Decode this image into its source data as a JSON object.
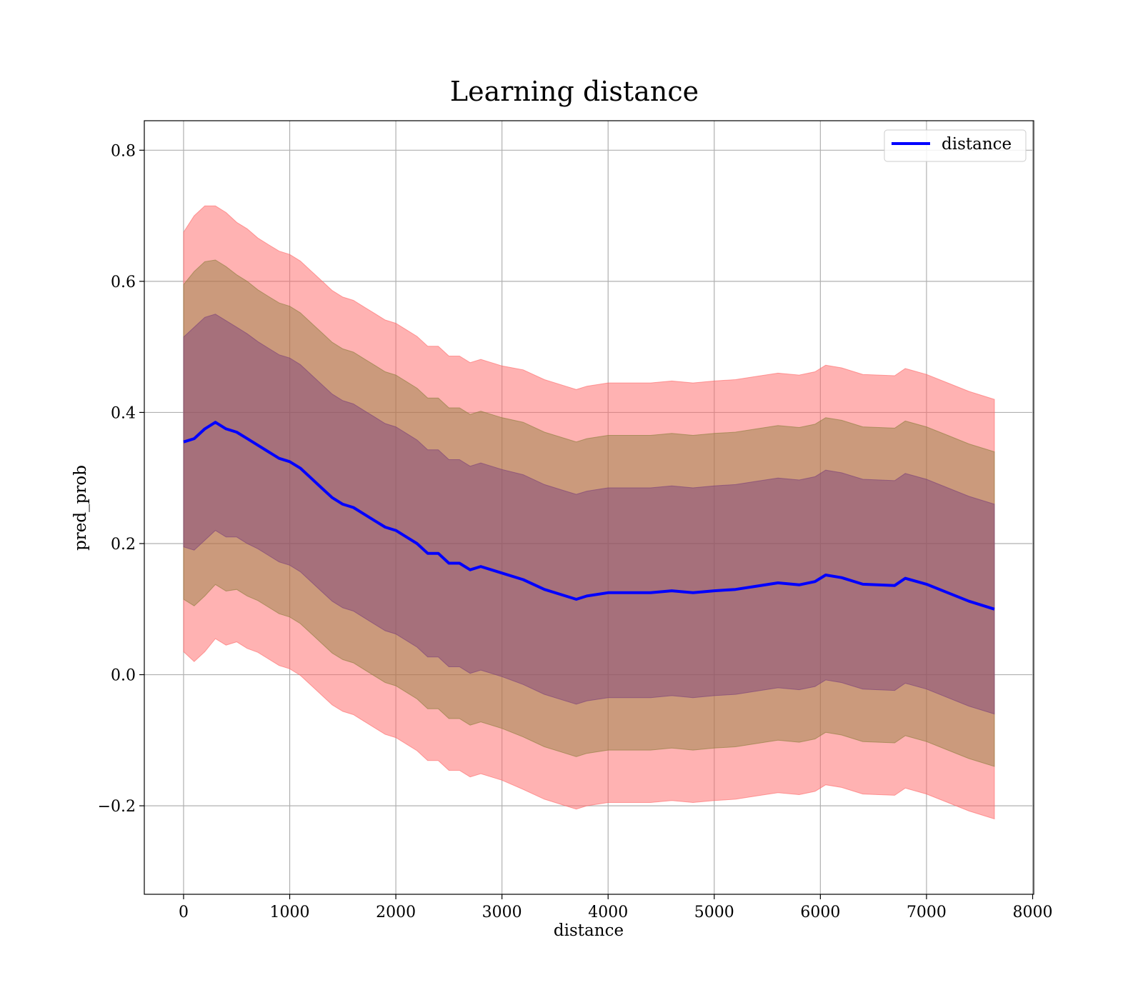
{
  "chart_data": {
    "type": "line",
    "title": "Learning distance",
    "xlabel": "distance",
    "ylabel": "pred_prob",
    "xlim": [
      -370,
      8010
    ],
    "ylim": [
      -0.335,
      0.845
    ],
    "xticks": [
      0,
      1000,
      2000,
      3000,
      4000,
      5000,
      6000,
      7000,
      8000
    ],
    "xtick_labels": [
      "0",
      "1000",
      "2000",
      "3000",
      "4000",
      "5000",
      "6000",
      "7000",
      "8000"
    ],
    "yticks": [
      -0.2,
      0.0,
      0.2,
      0.4,
      0.6,
      0.8
    ],
    "ytick_labels": [
      "−0.2",
      "0.0",
      "0.2",
      "0.4",
      "0.6",
      "0.8"
    ],
    "grid": true,
    "legend_position": "upper right",
    "legend": [
      "distance"
    ],
    "colors": {
      "line": "#0000ff",
      "outer_band": "#ff6666",
      "inner_band": "#8b5a8b",
      "grid": "#b0b0b0"
    },
    "bands": [
      {
        "std_multiplier": 2,
        "color": "#ff6666",
        "opacity": 0.5
      },
      {
        "std_multiplier": 1.5,
        "color": "#8b7d3a",
        "opacity": 0.45
      },
      {
        "std_multiplier": 1,
        "color": "#7a3f7a",
        "opacity": 0.45
      }
    ],
    "series": [
      {
        "name": "distance",
        "x": [
          0,
          100,
          200,
          300,
          400,
          500,
          600,
          700,
          800,
          900,
          1000,
          1100,
          1200,
          1300,
          1400,
          1500,
          1600,
          1700,
          1800,
          1900,
          2000,
          2100,
          2200,
          2300,
          2400,
          2500,
          2600,
          2700,
          2800,
          2900,
          3000,
          3200,
          3400,
          3600,
          3700,
          3800,
          4000,
          4200,
          4400,
          4600,
          4800,
          5000,
          5200,
          5400,
          5600,
          5800,
          5950,
          6050,
          6200,
          6400,
          6700,
          6800,
          7000,
          7200,
          7400,
          7640
        ],
        "y": [
          0.355,
          0.36,
          0.375,
          0.385,
          0.375,
          0.37,
          0.36,
          0.35,
          0.34,
          0.33,
          0.325,
          0.315,
          0.3,
          0.285,
          0.27,
          0.26,
          0.255,
          0.245,
          0.235,
          0.225,
          0.22,
          0.21,
          0.2,
          0.185,
          0.185,
          0.17,
          0.17,
          0.16,
          0.165,
          0.16,
          0.155,
          0.145,
          0.13,
          0.12,
          0.115,
          0.12,
          0.125,
          0.125,
          0.125,
          0.128,
          0.125,
          0.128,
          0.13,
          0.135,
          0.14,
          0.137,
          0.142,
          0.152,
          0.148,
          0.138,
          0.136,
          0.147,
          0.138,
          0.125,
          0.112,
          0.1
        ],
        "std": [
          0.16,
          0.17,
          0.17,
          0.165,
          0.165,
          0.16,
          0.16,
          0.158,
          0.158,
          0.158,
          0.158,
          0.158,
          0.158,
          0.158,
          0.158,
          0.158,
          0.158,
          0.158,
          0.158,
          0.158,
          0.158,
          0.158,
          0.158,
          0.158,
          0.158,
          0.158,
          0.158,
          0.158,
          0.158,
          0.158,
          0.158,
          0.16,
          0.16,
          0.16,
          0.16,
          0.16,
          0.16,
          0.16,
          0.16,
          0.16,
          0.16,
          0.16,
          0.16,
          0.16,
          0.16,
          0.16,
          0.16,
          0.16,
          0.16,
          0.16,
          0.16,
          0.16,
          0.16,
          0.16,
          0.16,
          0.16
        ]
      }
    ]
  }
}
